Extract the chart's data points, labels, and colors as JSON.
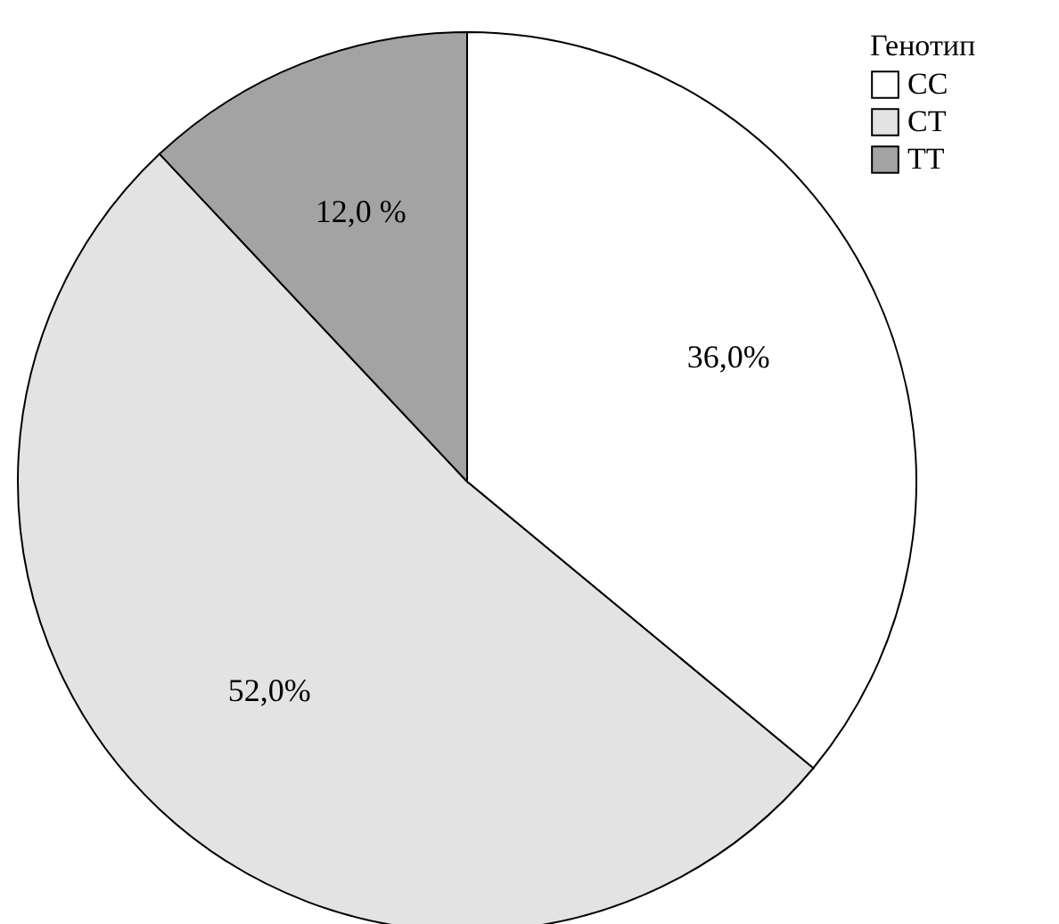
{
  "chart_data": {
    "type": "pie",
    "legend_title": "Генотип",
    "categories": [
      "CC",
      "CT",
      "TT"
    ],
    "values": [
      36,
      52,
      12
    ],
    "value_labels": [
      "36,0%",
      "52,0%",
      "12,0 %"
    ],
    "colors": [
      "#ffffff",
      "#e3e3e3",
      "#a3a3a3"
    ],
    "legend": "top right"
  }
}
